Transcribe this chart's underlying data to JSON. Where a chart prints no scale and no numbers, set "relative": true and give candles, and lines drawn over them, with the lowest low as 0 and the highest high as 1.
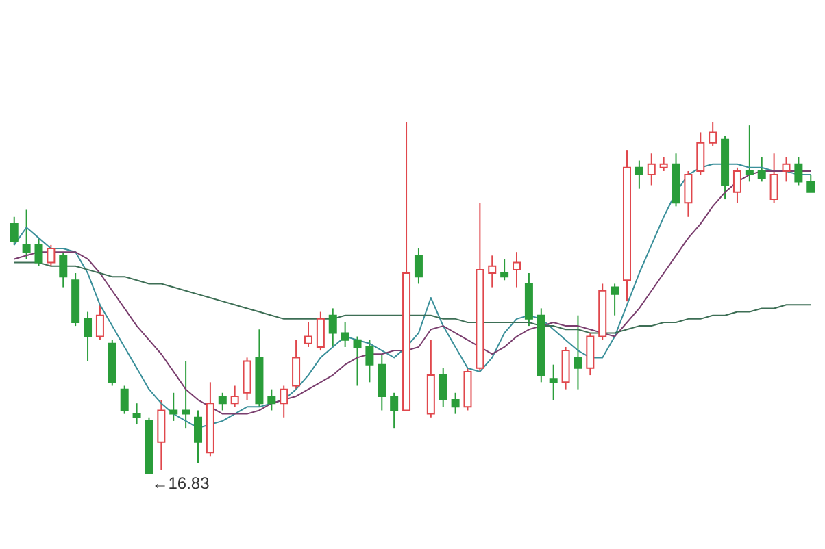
{
  "chart_data": {
    "type": "candlestick",
    "relative": true,
    "categories": [
      null,
      null,
      null,
      null,
      null,
      null,
      null,
      null,
      null,
      null,
      null,
      null,
      null,
      null,
      null,
      null,
      null,
      null,
      null,
      null,
      null,
      null,
      null,
      null,
      null,
      null,
      null,
      null,
      null,
      null,
      null,
      null,
      null,
      null,
      null,
      null,
      null,
      null,
      null,
      null,
      null,
      null,
      null,
      null,
      null,
      null,
      null,
      null,
      null,
      null,
      null,
      null,
      null,
      null,
      null,
      null,
      null,
      null,
      null,
      null,
      null,
      null,
      null,
      null,
      null,
      null
    ],
    "ohlc": [
      [
        0.71,
        0.73,
        0.65,
        0.66
      ],
      [
        0.65,
        0.75,
        0.61,
        0.63
      ],
      [
        0.65,
        0.67,
        0.59,
        0.6
      ],
      [
        0.6,
        0.65,
        0.59,
        0.64
      ],
      [
        0.62,
        0.63,
        0.53,
        0.56
      ],
      [
        0.55,
        0.57,
        0.42,
        0.43
      ],
      [
        0.44,
        0.46,
        0.32,
        0.39
      ],
      [
        0.39,
        0.48,
        0.38,
        0.45
      ],
      [
        0.37,
        0.38,
        0.25,
        0.26
      ],
      [
        0.24,
        0.25,
        0.17,
        0.18
      ],
      [
        0.17,
        0.2,
        0.14,
        0.16
      ],
      [
        0.15,
        0.16,
        0,
        0
      ],
      [
        0.09,
        0.21,
        0.01,
        0.18
      ],
      [
        0.18,
        0.23,
        0.15,
        0.17
      ],
      [
        0.18,
        0.32,
        0.13,
        0.17
      ],
      [
        0.16,
        0.18,
        0.03,
        0.09
      ],
      [
        0.06,
        0.26,
        0.05,
        0.2
      ],
      [
        0.22,
        0.23,
        0.18,
        0.2
      ],
      [
        0.2,
        0.25,
        0.19,
        0.22
      ],
      [
        0.23,
        0.33,
        0.21,
        0.32
      ],
      [
        0.33,
        0.41,
        0.19,
        0.2
      ],
      [
        0.22,
        0.24,
        0.18,
        0.2
      ],
      [
        0.2,
        0.25,
        0.16,
        0.24
      ],
      [
        0.25,
        0.38,
        0.24,
        0.33
      ],
      [
        0.37,
        0.43,
        0.36,
        0.39
      ],
      [
        0.36,
        0.46,
        0.35,
        0.44
      ],
      [
        0.45,
        0.47,
        0.36,
        0.4
      ],
      [
        0.4,
        0.43,
        0.36,
        0.38
      ],
      [
        0.38,
        0.39,
        0.25,
        0.36
      ],
      [
        0.36,
        0.38,
        0.26,
        0.31
      ],
      [
        0.31,
        0.34,
        0.18,
        0.22
      ],
      [
        0.22,
        0.23,
        0.13,
        0.18
      ],
      [
        0.18,
        1.0,
        0.18,
        0.57
      ],
      [
        0.62,
        0.64,
        0.54,
        0.56
      ],
      [
        0.17,
        0.38,
        0.16,
        0.28
      ],
      [
        0.28,
        0.3,
        0.19,
        0.21
      ],
      [
        0.21,
        0.23,
        0.17,
        0.19
      ],
      [
        0.19,
        0.3,
        0.18,
        0.29
      ],
      [
        0.3,
        0.77,
        0.29,
        0.58
      ],
      [
        0.57,
        0.62,
        0.53,
        0.59
      ],
      [
        0.57,
        0.61,
        0.55,
        0.56
      ],
      [
        0.58,
        0.63,
        0.53,
        0.6
      ],
      [
        0.54,
        0.57,
        0.42,
        0.44
      ],
      [
        0.45,
        0.47,
        0.26,
        0.28
      ],
      [
        0.27,
        0.31,
        0.21,
        0.26
      ],
      [
        0.26,
        0.36,
        0.24,
        0.35
      ],
      [
        0.33,
        0.45,
        0.24,
        0.3
      ],
      [
        0.3,
        0.4,
        0.28,
        0.39
      ],
      [
        0.39,
        0.54,
        0.38,
        0.52
      ],
      [
        0.53,
        0.54,
        0.45,
        0.51
      ],
      [
        0.55,
        0.92,
        0.49,
        0.87
      ],
      [
        0.87,
        0.89,
        0.81,
        0.85
      ],
      [
        0.85,
        0.91,
        0.82,
        0.88
      ],
      [
        0.87,
        0.9,
        0.86,
        0.88
      ],
      [
        0.88,
        0.91,
        0.76,
        0.77
      ],
      [
        0.77,
        0.86,
        0.73,
        0.85
      ],
      [
        0.86,
        0.97,
        0.85,
        0.94
      ],
      [
        0.94,
        1.0,
        0.93,
        0.97
      ],
      [
        0.95,
        0.96,
        0.78,
        0.82
      ],
      [
        0.8,
        0.87,
        0.77,
        0.86
      ],
      [
        0.86,
        0.99,
        0.83,
        0.85
      ],
      [
        0.86,
        0.9,
        0.83,
        0.84
      ],
      [
        0.78,
        0.91,
        0.77,
        0.85
      ],
      [
        0.86,
        0.9,
        0.83,
        0.88
      ],
      [
        0.88,
        0.9,
        0.82,
        0.83
      ],
      [
        0.83,
        0.85,
        0.8,
        0.8
      ]
    ],
    "colors": [
      "#2a9d3a",
      "#2a9d3a",
      "#2a9d3a",
      "#e0474c",
      "#2a9d3a",
      "#2a9d3a",
      "#2a9d3a",
      "#e0474c",
      "#2a9d3a",
      "#2a9d3a",
      "#2a9d3a",
      "#2a9d3a",
      "#e0474c",
      "#2a9d3a",
      "#2a9d3a",
      "#2a9d3a",
      "#e0474c",
      "#2a9d3a",
      "#e0474c",
      "#e0474c",
      "#2a9d3a",
      "#2a9d3a",
      "#e0474c",
      "#e0474c",
      "#e0474c",
      "#e0474c",
      "#2a9d3a",
      "#2a9d3a",
      "#2a9d3a",
      "#2a9d3a",
      "#2a9d3a",
      "#2a9d3a",
      "#e0474c",
      "#2a9d3a",
      "#e0474c",
      "#2a9d3a",
      "#2a9d3a",
      "#e0474c",
      "#e0474c",
      "#e0474c",
      "#2a9d3a",
      "#e0474c",
      "#2a9d3a",
      "#2a9d3a",
      "#2a9d3a",
      "#e0474c",
      "#2a9d3a",
      "#e0474c",
      "#e0474c",
      "#2a9d3a",
      "#e0474c",
      "#2a9d3a",
      "#e0474c",
      "#e0474c",
      "#2a9d3a",
      "#e0474c",
      "#e0474c",
      "#e0474c",
      "#2a9d3a",
      "#e0474c",
      "#2a9d3a",
      "#2a9d3a",
      "#e0474c",
      "#e0474c",
      "#2a9d3a",
      "#2a9d3a"
    ],
    "series": [
      {
        "type": "line",
        "color": "#3a8f9a",
        "values": [
          0.65,
          0.7,
          0.67,
          0.64,
          0.64,
          0.63,
          0.57,
          0.48,
          0.42,
          0.36,
          0.3,
          0.24,
          0.2,
          0.17,
          0.15,
          0.13,
          0.14,
          0.15,
          0.17,
          0.19,
          0.19,
          0.2,
          0.21,
          0.24,
          0.28,
          0.33,
          0.36,
          0.39,
          0.38,
          0.37,
          0.35,
          0.33,
          0.36,
          0.4,
          0.5,
          0.42,
          0.36,
          0.3,
          0.29,
          0.33,
          0.4,
          0.44,
          0.45,
          0.44,
          0.41,
          0.38,
          0.35,
          0.33,
          0.33,
          0.39,
          0.48,
          0.57,
          0.65,
          0.73,
          0.8,
          0.85,
          0.87,
          0.88,
          0.88,
          0.88,
          0.87,
          0.87,
          0.86,
          0.86,
          0.85,
          0.85
        ]
      },
      {
        "type": "line",
        "color": "#7a3e6e",
        "values": [
          0.61,
          0.62,
          0.63,
          0.63,
          0.63,
          0.63,
          0.61,
          0.57,
          0.52,
          0.47,
          0.42,
          0.38,
          0.34,
          0.29,
          0.24,
          0.21,
          0.19,
          0.17,
          0.17,
          0.17,
          0.18,
          0.2,
          0.21,
          0.22,
          0.24,
          0.26,
          0.28,
          0.31,
          0.33,
          0.34,
          0.34,
          0.35,
          0.35,
          0.36,
          0.41,
          0.42,
          0.4,
          0.38,
          0.36,
          0.34,
          0.36,
          0.39,
          0.41,
          0.42,
          0.43,
          0.42,
          0.42,
          0.41,
          0.4,
          0.39,
          0.43,
          0.47,
          0.52,
          0.57,
          0.62,
          0.67,
          0.71,
          0.76,
          0.8,
          0.83,
          0.85,
          0.86,
          0.86,
          0.86,
          0.86,
          0.86
        ]
      },
      {
        "type": "line",
        "color": "#3d6e55",
        "values": [
          0.6,
          0.6,
          0.6,
          0.59,
          0.59,
          0.59,
          0.58,
          0.57,
          0.56,
          0.56,
          0.55,
          0.54,
          0.54,
          0.53,
          0.52,
          0.51,
          0.5,
          0.49,
          0.48,
          0.47,
          0.46,
          0.45,
          0.44,
          0.44,
          0.44,
          0.44,
          0.44,
          0.45,
          0.45,
          0.45,
          0.45,
          0.45,
          0.45,
          0.45,
          0.45,
          0.44,
          0.44,
          0.43,
          0.43,
          0.43,
          0.43,
          0.43,
          0.43,
          0.42,
          0.42,
          0.41,
          0.41,
          0.4,
          0.4,
          0.4,
          0.41,
          0.42,
          0.42,
          0.43,
          0.43,
          0.44,
          0.44,
          0.45,
          0.45,
          0.46,
          0.46,
          0.47,
          0.47,
          0.48,
          0.48,
          0.48
        ]
      }
    ],
    "annotations": [
      "←16.83"
    ]
  }
}
